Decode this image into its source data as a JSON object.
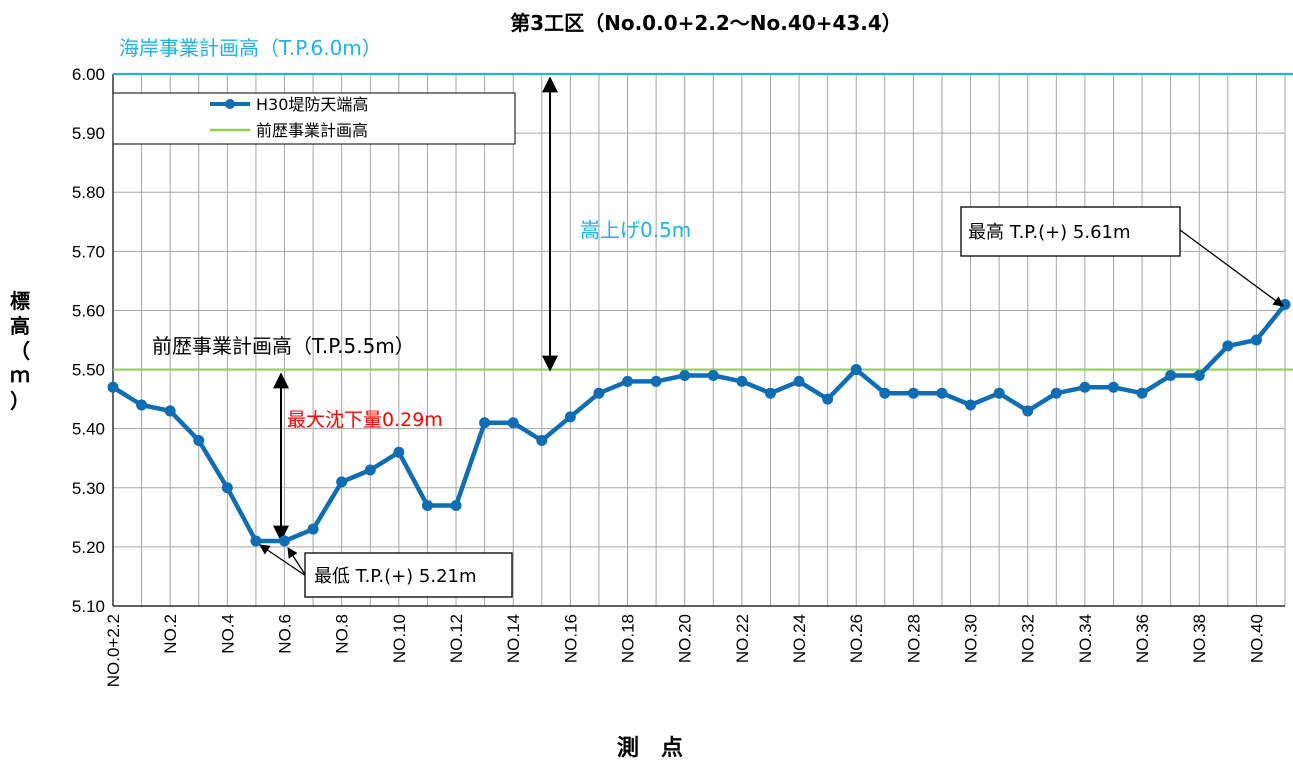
{
  "chart_data": {
    "type": "line",
    "title": "第3工区（No.0.0+2.2～No.40+43.4）",
    "xlabel": "測　点",
    "ylabel_chars": [
      "標",
      "高",
      "（",
      "ｍ",
      "）"
    ],
    "ylim": [
      5.1,
      6.0
    ],
    "yticks": [
      "5.10",
      "5.20",
      "5.30",
      "5.40",
      "5.50",
      "5.60",
      "5.70",
      "5.80",
      "5.90",
      "6.00"
    ],
    "grid": true,
    "legend_position": "top-left",
    "x_tick_labels": [
      "NO.0+2.2",
      "NO.2",
      "NO.4",
      "NO.6",
      "NO.8",
      "NO.10",
      "NO.12",
      "NO.14",
      "NO.16",
      "NO.18",
      "NO.20",
      "NO.22",
      "NO.24",
      "NO.26",
      "NO.28",
      "NO.30",
      "NO.32",
      "NO.34",
      "NO.36",
      "NO.38",
      "NO.40"
    ],
    "series": [
      {
        "name": "H30堤防天端高",
        "color": "#0f6db3",
        "values": [
          5.47,
          5.44,
          5.43,
          5.38,
          5.3,
          5.21,
          5.21,
          5.23,
          5.31,
          5.33,
          5.36,
          5.27,
          5.27,
          5.41,
          5.41,
          5.38,
          5.42,
          5.46,
          5.48,
          5.48,
          5.49,
          5.49,
          5.48,
          5.46,
          5.48,
          5.45,
          5.5,
          5.46,
          5.46,
          5.46,
          5.44,
          5.46,
          5.43,
          5.46,
          5.47,
          5.47,
          5.46,
          5.49,
          5.49,
          5.54,
          5.55,
          5.61
        ]
      },
      {
        "name": "前歴事業計画高",
        "color": "#92d050",
        "value": 5.5
      }
    ],
    "reference_lines": [
      {
        "label": "海岸事業計画高（T.P.6.0m）",
        "value": 6.0,
        "color": "#1fb2e6"
      },
      {
        "label": "前歴事業計画高（T.P.5.5m）",
        "value": 5.5,
        "color": "#92d050"
      }
    ],
    "annotations": {
      "raise": "嵩上げ0.5m",
      "max_settle": "最大沈下量0.29m",
      "lowest": "最低 T.P.(+) 5.21m",
      "highest": "最高 T.P.(+) 5.61m"
    }
  }
}
